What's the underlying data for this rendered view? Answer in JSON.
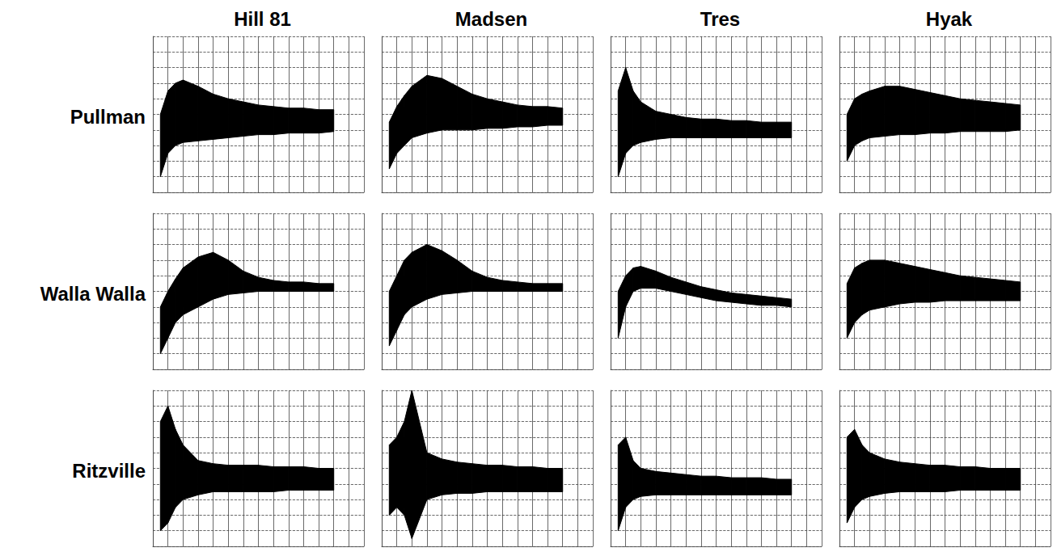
{
  "chart_data": {
    "type": "band",
    "rows": [
      "Pullman",
      "Walla Walla",
      "Ritzville"
    ],
    "columns": [
      "Hill 81",
      "Madsen",
      "Tres",
      "Hyak"
    ],
    "xlim": [
      0,
      14
    ],
    "xticks": [
      0,
      1,
      2,
      3,
      4,
      5,
      6,
      7,
      8,
      9,
      10,
      11,
      12,
      13,
      14
    ],
    "ylim": [
      0,
      10
    ],
    "yticks": [
      0,
      1,
      2,
      3,
      4,
      5,
      6,
      7,
      8,
      9,
      10
    ],
    "grid": true,
    "tick_labels": false,
    "color": "#000000",
    "x": [
      0.5,
      1,
      1.5,
      2,
      3,
      4,
      5,
      6,
      7,
      8,
      9,
      10,
      11,
      12
    ],
    "panels": [
      {
        "row": "Pullman",
        "column": "Hill 81",
        "lower": [
          1,
          2.5,
          3,
          3.2,
          3.3,
          3.4,
          3.5,
          3.6,
          3.7,
          3.7,
          3.8,
          3.8,
          3.8,
          3.9
        ],
        "upper": [
          5,
          6.5,
          7,
          7.2,
          6.8,
          6.3,
          6,
          5.8,
          5.6,
          5.5,
          5.4,
          5.4,
          5.3,
          5.3
        ]
      },
      {
        "row": "Pullman",
        "column": "Madsen",
        "lower": [
          1.5,
          2.5,
          3,
          3.5,
          3.8,
          4,
          4,
          4,
          4.1,
          4.1,
          4.2,
          4.2,
          4.3,
          4.3
        ],
        "upper": [
          4.5,
          5.5,
          6.2,
          6.8,
          7.5,
          7.3,
          6.8,
          6.3,
          6,
          5.8,
          5.6,
          5.5,
          5.5,
          5.4
        ]
      },
      {
        "row": "Pullman",
        "column": "Tres",
        "lower": [
          1,
          2.5,
          3,
          3.2,
          3.4,
          3.5,
          3.5,
          3.5,
          3.5,
          3.5,
          3.5,
          3.5,
          3.5,
          3.5
        ],
        "upper": [
          6.5,
          8,
          6.5,
          5.8,
          5.2,
          5,
          4.8,
          4.7,
          4.7,
          4.6,
          4.6,
          4.5,
          4.5,
          4.5
        ]
      },
      {
        "row": "Pullman",
        "column": "Hyak",
        "lower": [
          2,
          3,
          3.3,
          3.5,
          3.6,
          3.7,
          3.7,
          3.8,
          3.8,
          3.9,
          3.9,
          3.9,
          3.9,
          4
        ],
        "upper": [
          5,
          6,
          6.3,
          6.5,
          6.8,
          6.8,
          6.6,
          6.4,
          6.2,
          6,
          5.9,
          5.8,
          5.7,
          5.6
        ]
      },
      {
        "row": "Walla Walla",
        "column": "Hill 81",
        "lower": [
          1,
          2,
          3,
          3.5,
          4,
          4.5,
          4.8,
          4.9,
          5,
          5,
          5,
          5,
          5,
          5
        ],
        "upper": [
          4,
          5,
          5.8,
          6.5,
          7.2,
          7.5,
          7,
          6.3,
          5.9,
          5.7,
          5.6,
          5.6,
          5.5,
          5.5
        ]
      },
      {
        "row": "Walla Walla",
        "column": "Madsen",
        "lower": [
          1.5,
          2.5,
          3.5,
          4,
          4.5,
          4.8,
          4.9,
          5,
          5,
          5,
          5,
          5,
          5,
          5
        ],
        "upper": [
          5,
          6,
          7,
          7.5,
          8,
          7.6,
          7,
          6.3,
          5.9,
          5.7,
          5.6,
          5.5,
          5.5,
          5.5
        ]
      },
      {
        "row": "Walla Walla",
        "column": "Tres",
        "lower": [
          2,
          4,
          5,
          5.2,
          5.2,
          5,
          4.8,
          4.6,
          4.4,
          4.3,
          4.2,
          4.1,
          4.1,
          4
        ],
        "upper": [
          5,
          6,
          6.5,
          6.6,
          6.3,
          5.9,
          5.6,
          5.3,
          5.1,
          4.9,
          4.8,
          4.7,
          4.6,
          4.5
        ]
      },
      {
        "row": "Walla Walla",
        "column": "Hyak",
        "lower": [
          2,
          3,
          3.5,
          3.8,
          4,
          4.2,
          4.3,
          4.3,
          4.4,
          4.4,
          4.4,
          4.4,
          4.4,
          4.4
        ],
        "upper": [
          5.5,
          6.5,
          6.8,
          7,
          7,
          6.8,
          6.6,
          6.4,
          6.2,
          6,
          5.9,
          5.8,
          5.7,
          5.6
        ]
      },
      {
        "row": "Ritzville",
        "column": "Hill 81",
        "lower": [
          1,
          1.5,
          2.5,
          3,
          3.3,
          3.5,
          3.5,
          3.5,
          3.5,
          3.5,
          3.6,
          3.6,
          3.6,
          3.6
        ],
        "upper": [
          8,
          9,
          7.5,
          6.5,
          5.5,
          5.3,
          5.2,
          5.2,
          5.2,
          5.1,
          5.1,
          5.1,
          5,
          5
        ]
      },
      {
        "row": "Ritzville",
        "column": "Madsen",
        "lower": [
          2,
          2.5,
          2,
          0.5,
          3,
          3.3,
          3.4,
          3.4,
          3.5,
          3.5,
          3.5,
          3.5,
          3.5,
          3.5
        ],
        "upper": [
          6.5,
          7,
          8,
          10,
          6,
          5.6,
          5.4,
          5.3,
          5.2,
          5.2,
          5.1,
          5.1,
          5,
          5
        ]
      },
      {
        "row": "Ritzville",
        "column": "Tres",
        "lower": [
          1,
          2.5,
          3,
          3.2,
          3.3,
          3.3,
          3.3,
          3.3,
          3.3,
          3.3,
          3.3,
          3.3,
          3.3,
          3.3
        ],
        "upper": [
          6.5,
          7,
          5.5,
          5,
          4.8,
          4.7,
          4.6,
          4.5,
          4.5,
          4.4,
          4.4,
          4.4,
          4.3,
          4.3
        ]
      },
      {
        "row": "Ritzville",
        "column": "Hyak",
        "lower": [
          1.5,
          2.5,
          3,
          3.2,
          3.4,
          3.5,
          3.5,
          3.5,
          3.5,
          3.6,
          3.6,
          3.6,
          3.6,
          3.6
        ],
        "upper": [
          7,
          7.5,
          6.5,
          6,
          5.6,
          5.4,
          5.3,
          5.2,
          5.2,
          5.1,
          5.1,
          5,
          5,
          5
        ]
      }
    ]
  }
}
